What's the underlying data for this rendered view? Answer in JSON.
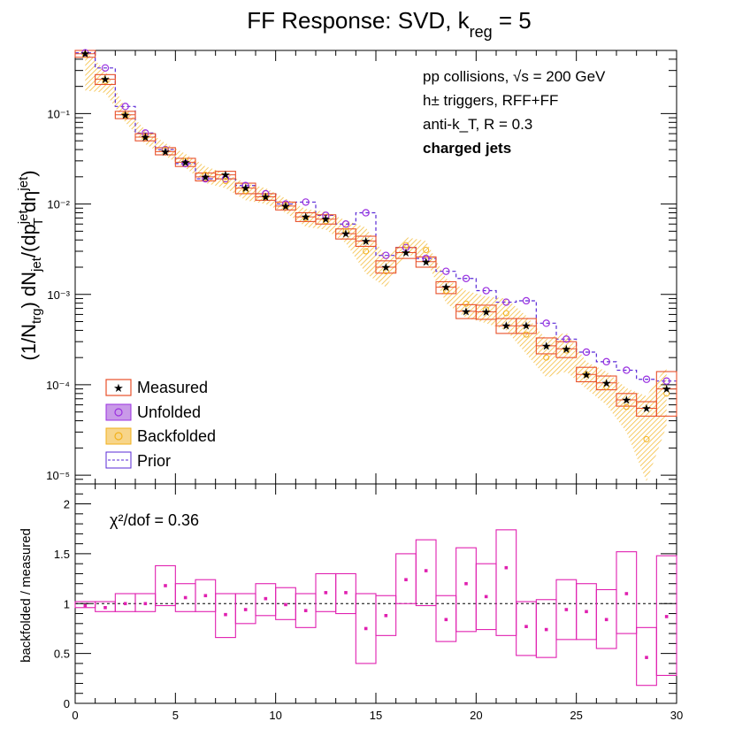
{
  "colors": {
    "measured": "#e8502a",
    "measured_marker": "#e8502a",
    "unfolded": "#9b30e0",
    "backfolded": "#f2b11c",
    "prior": "#5a2ad6",
    "ratio": "#e020b0",
    "axis": "#000000"
  },
  "chart_data": [
    {
      "type": "scatter",
      "title": "FF Response: SVD, k_reg = 5",
      "title_main": "FF Response: SVD, k",
      "title_sub": "reg",
      "title_tail": " = 5",
      "ylabel": "(1/N_trg) dN_jet/(dp_T^jet dη^jet)",
      "ylog": true,
      "xlim": [
        0,
        30
      ],
      "ylim": [
        8e-06,
        0.5
      ],
      "x_ticks": [
        0,
        5,
        10,
        15,
        20,
        25,
        30
      ],
      "y_ticks_labels": [
        "10⁻⁵",
        "10⁻⁴",
        "10⁻³",
        "10⁻²",
        "10⁻¹"
      ],
      "annotations": {
        "line1": "pp collisions, √s = 200 GeV",
        "line2": "h± triggers, RFF+FF",
        "line3": "anti-k_T, R = 0.3",
        "line4": "charged jets"
      },
      "legend": [
        "Measured",
        "Unfolded",
        "Backfolded",
        "Prior"
      ],
      "legend_position": "bottom-left",
      "x": [
        0.5,
        1.5,
        2.5,
        3.5,
        4.5,
        5.5,
        6.5,
        7.5,
        8.5,
        9.5,
        10.5,
        11.5,
        12.5,
        13.5,
        14.5,
        15.5,
        16.5,
        17.5,
        18.5,
        19.5,
        20.5,
        21.5,
        22.5,
        23.5,
        24.5,
        25.5,
        26.5,
        27.5,
        28.5,
        29.5
      ],
      "series": [
        {
          "name": "Measured",
          "values": [
            0.46,
            0.24,
            0.097,
            0.055,
            0.038,
            0.029,
            0.02,
            0.021,
            0.015,
            0.012,
            0.0095,
            0.0072,
            0.0068,
            0.0047,
            0.0039,
            0.002,
            0.0029,
            0.0023,
            0.0012,
            0.00065,
            0.00064,
            0.00045,
            0.00045,
            0.00027,
            0.00025,
            0.00013,
            0.000105,
            6.8e-05,
            5.5e-05,
            9e-05
          ],
          "err_low": [
            0.42,
            0.21,
            0.088,
            0.05,
            0.035,
            0.026,
            0.018,
            0.019,
            0.013,
            0.011,
            0.0086,
            0.0064,
            0.006,
            0.0041,
            0.0034,
            0.00172,
            0.0025,
            0.002,
            0.00102,
            0.00054,
            0.00053,
            0.00037,
            0.00037,
            0.00022,
            0.0002,
            0.000108,
            8.8e-05,
            5.8e-05,
            4.5e-05,
            4.5e-05
          ],
          "err_high": [
            0.5,
            0.27,
            0.106,
            0.06,
            0.042,
            0.032,
            0.022,
            0.023,
            0.017,
            0.013,
            0.0105,
            0.008,
            0.0076,
            0.0053,
            0.0044,
            0.00235,
            0.0033,
            0.0026,
            0.00138,
            0.00077,
            0.00076,
            0.00054,
            0.00054,
            0.00033,
            0.0003,
            0.000156,
            0.000125,
            8e-05,
            6.5e-05,
            0.00014
          ]
        },
        {
          "name": "Unfolded",
          "values": [
            0.47,
            0.32,
            0.12,
            0.061,
            0.04,
            0.028,
            0.019,
            0.019,
            0.016,
            0.013,
            0.01,
            0.0105,
            0.0075,
            0.006,
            0.008,
            0.0027,
            0.0033,
            0.0025,
            0.0018,
            0.0015,
            0.0011,
            0.00082,
            0.00085,
            0.00048,
            0.00032,
            0.00023,
            0.00018,
            0.000145,
            0.000115,
            0.00011
          ]
        },
        {
          "name": "Backfolded",
          "values": [
            0.45,
            0.23,
            0.096,
            0.055,
            0.04,
            0.03,
            0.021,
            0.018,
            0.014,
            0.012,
            0.0095,
            0.007,
            0.0065,
            0.005,
            0.003,
            0.0018,
            0.0035,
            0.0031,
            0.0011,
            0.00079,
            0.00068,
            0.00062,
            0.00036,
            0.0002,
            0.00024,
            0.00013,
            9.5e-05,
            5.7e-05,
            2.5e-05,
            8e-05
          ],
          "err_low": [
            0.18,
            0.17,
            0.08,
            0.046,
            0.034,
            0.025,
            0.017,
            0.015,
            0.011,
            0.01,
            0.008,
            0.0056,
            0.0052,
            0.0037,
            0.0017,
            0.0012,
            0.0028,
            0.0024,
            0.0008,
            0.00055,
            0.00048,
            0.0004,
            0.00022,
            0.00012,
            0.00014,
            9e-05,
            6e-05,
            3e-05,
            8.5e-06,
            3.5e-05
          ],
          "err_high": [
            0.5,
            0.3,
            0.115,
            0.066,
            0.047,
            0.036,
            0.026,
            0.022,
            0.017,
            0.015,
            0.0115,
            0.0088,
            0.0082,
            0.0066,
            0.0055,
            0.0026,
            0.0043,
            0.0039,
            0.0015,
            0.0011,
            0.00095,
            0.0009,
            0.00058,
            0.00032,
            0.00038,
            0.00018,
            0.00014,
            9.2e-05,
            7.5e-05,
            0.00016
          ]
        },
        {
          "name": "Prior",
          "values": [
            0.47,
            0.32,
            0.12,
            0.061,
            0.04,
            0.028,
            0.019,
            0.019,
            0.016,
            0.013,
            0.01,
            0.0105,
            0.0075,
            0.006,
            0.008,
            0.0027,
            0.0033,
            0.0025,
            0.0018,
            0.0015,
            0.0011,
            0.00082,
            0.00085,
            0.00048,
            0.00032,
            0.00023,
            0.00018,
            0.000145,
            0.000115,
            0.00011
          ]
        }
      ]
    },
    {
      "type": "scatter",
      "ylabel": "backfolded / measured",
      "xlim": [
        0,
        30
      ],
      "ylim": [
        0,
        2.2
      ],
      "y_ticks": [
        0,
        0.5,
        1,
        1.5,
        2
      ],
      "y_tick_labels": [
        "0",
        "0.5",
        "1",
        "1.5",
        "2"
      ],
      "x_tick_labels": [
        "0",
        "5",
        "10",
        "15",
        "20",
        "25",
        "30"
      ],
      "reference_line": 1,
      "annotation": "χ²/dof = 0.36",
      "x": [
        0.5,
        1.5,
        2.5,
        3.5,
        4.5,
        5.5,
        6.5,
        7.5,
        8.5,
        9.5,
        10.5,
        11.5,
        12.5,
        13.5,
        14.5,
        15.5,
        16.5,
        17.5,
        18.5,
        19.5,
        20.5,
        21.5,
        22.5,
        23.5,
        24.5,
        25.5,
        26.5,
        27.5,
        28.5,
        29.5
      ],
      "values": [
        0.98,
        0.96,
        1.0,
        1.0,
        1.18,
        1.06,
        1.08,
        0.89,
        0.94,
        1.05,
        0.99,
        0.93,
        1.11,
        1.11,
        0.75,
        0.88,
        1.24,
        1.33,
        0.84,
        1.2,
        1.07,
        1.36,
        0.77,
        0.74,
        0.94,
        0.92,
        0.84,
        1.1,
        0.46,
        0.87
      ],
      "err_low": [
        0.96,
        0.92,
        0.92,
        0.92,
        0.98,
        0.92,
        0.92,
        0.66,
        0.8,
        0.88,
        0.84,
        0.76,
        0.92,
        0.9,
        0.4,
        0.68,
        1.0,
        0.98,
        0.62,
        0.72,
        0.74,
        0.68,
        0.48,
        0.46,
        0.64,
        0.64,
        0.55,
        0.7,
        0.18,
        0.28
      ],
      "err_high": [
        1.02,
        1.02,
        1.1,
        1.1,
        1.38,
        1.2,
        1.24,
        1.1,
        1.1,
        1.2,
        1.16,
        1.1,
        1.3,
        1.3,
        1.1,
        1.08,
        1.5,
        1.64,
        1.08,
        1.56,
        1.4,
        1.74,
        1.02,
        1.04,
        1.24,
        1.2,
        1.14,
        1.52,
        0.76,
        1.48
      ]
    }
  ]
}
